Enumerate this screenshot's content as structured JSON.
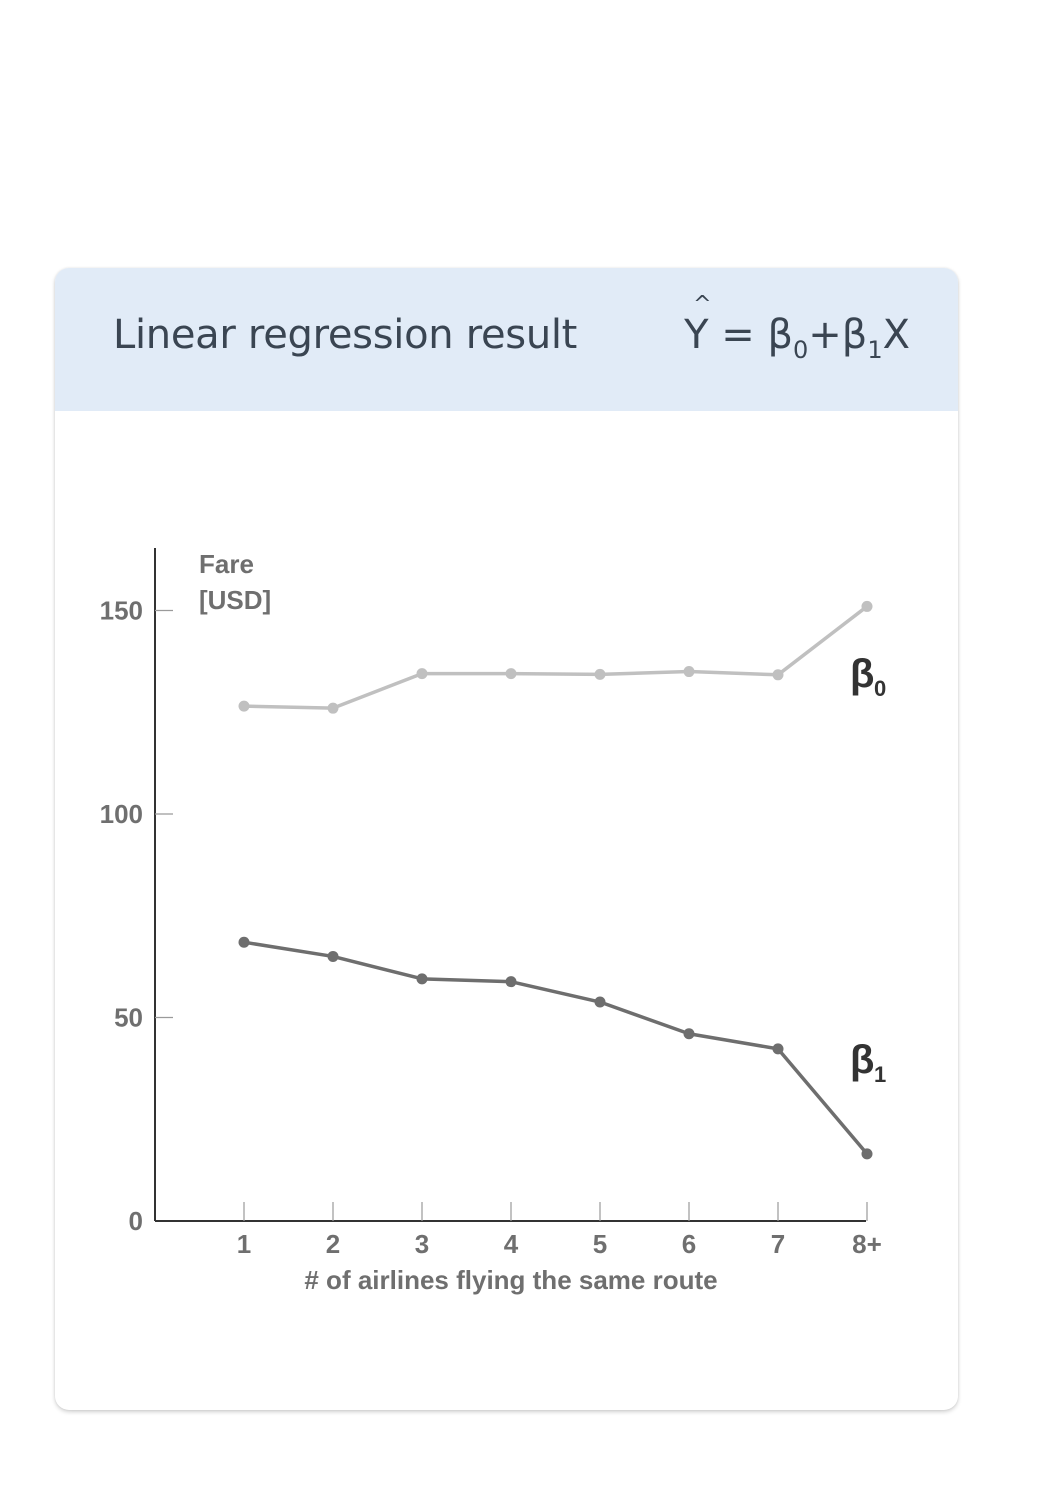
{
  "card": {
    "title": "Linear regression result",
    "formula": {
      "hat": "^",
      "y": "Y",
      "eq": " = ",
      "b0": "β",
      "b0_sub": "0",
      "plus": "+",
      "b1": "β",
      "b1_sub": "1",
      "x": "X"
    }
  },
  "chart_data": {
    "type": "line",
    "title": "",
    "ylabel_line1": "Fare",
    "ylabel_line2": "[USD]",
    "xlabel": "# of airlines flying the same route",
    "categories": [
      "1",
      "2",
      "3",
      "4",
      "5",
      "6",
      "7",
      "8+"
    ],
    "ylim": [
      0,
      165
    ],
    "yticks": [
      0,
      50,
      100,
      150
    ],
    "series": [
      {
        "name": "β",
        "sub": "0",
        "color": "#c0c0c0",
        "values": [
          126.5,
          126,
          134.5,
          134.5,
          134.3,
          135,
          134.2,
          151
        ]
      },
      {
        "name": "β",
        "sub": "1",
        "color": "#6e6e6e",
        "values": [
          68.5,
          65,
          59.5,
          58.8,
          53.8,
          46,
          42.3,
          16.5
        ]
      }
    ],
    "colors": {
      "axis": "#333333",
      "tick_label": "#6f6f6f",
      "series_label": "#333333"
    }
  }
}
